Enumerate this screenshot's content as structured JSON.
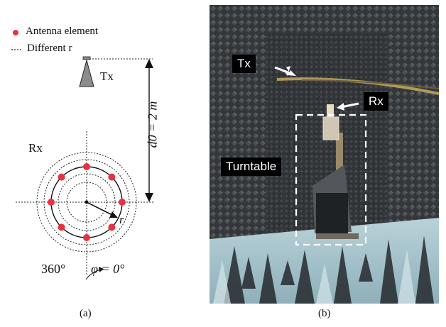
{
  "panel_a": {
    "legend": {
      "element_label": "Antenna element",
      "radius_label": "Different r"
    },
    "tx_label": "Tx",
    "rx_label": "Rx",
    "distance_label": "d0 = 2 m",
    "angle_start": "360°",
    "angle_zero": "φ = 0°",
    "radius_symbol": "r",
    "caption": "(a)"
  },
  "panel_b": {
    "tx_tag": "Tx",
    "rx_tag": "Rx",
    "turntable_tag": "Turntable",
    "caption": "(b)"
  },
  "colors": {
    "element": "#e8323f",
    "tx_antenna": "#8c8c8c",
    "chamber_dark": "#3b3d40",
    "foam_floor": "#a9c4cc"
  }
}
